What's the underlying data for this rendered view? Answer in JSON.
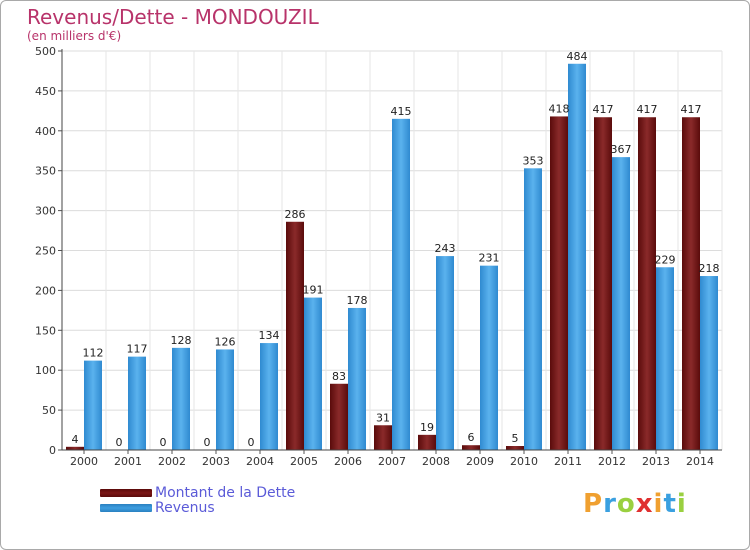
{
  "title": "Revenus/Dette - MONDOUZIL",
  "subtitle": "(en milliers d'€)",
  "brand": {
    "letters": [
      "P",
      "r",
      "o",
      "x",
      "i",
      "t",
      "i"
    ],
    "letter_colors": [
      "#f0a030",
      "#3aa0e0",
      "#9ad040",
      "#e03030",
      "#f0a030",
      "#3aa0e0",
      "#9ad040"
    ]
  },
  "colors": {
    "dette": "#7a1515",
    "revenus": "#3d9ee0",
    "title": "#b8336a",
    "legend_text": "#5b5bd8"
  },
  "legend": [
    {
      "label": "Montant de la Dette",
      "color": "#7a1515"
    },
    {
      "label": "Revenus",
      "color": "#3d9ee0"
    }
  ],
  "chart_data": {
    "type": "bar",
    "categories": [
      "2000",
      "2001",
      "2002",
      "2003",
      "2004",
      "2005",
      "2006",
      "2007",
      "2008",
      "2009",
      "2010",
      "2011",
      "2012",
      "2013",
      "2014"
    ],
    "series": [
      {
        "name": "Montant de la Dette",
        "values": [
          4,
          0,
          0,
          0,
          0,
          286,
          83,
          31,
          19,
          6,
          5,
          418,
          417,
          417,
          417
        ]
      },
      {
        "name": "Revenus",
        "values": [
          112,
          117,
          128,
          126,
          134,
          191,
          178,
          415,
          243,
          231,
          353,
          484,
          367,
          229,
          218
        ]
      }
    ],
    "ylim": [
      0,
      500
    ],
    "yticks": [
      0,
      50,
      100,
      150,
      200,
      250,
      300,
      350,
      400,
      450,
      500
    ],
    "grid": true,
    "legend_position": "bottom-left"
  }
}
